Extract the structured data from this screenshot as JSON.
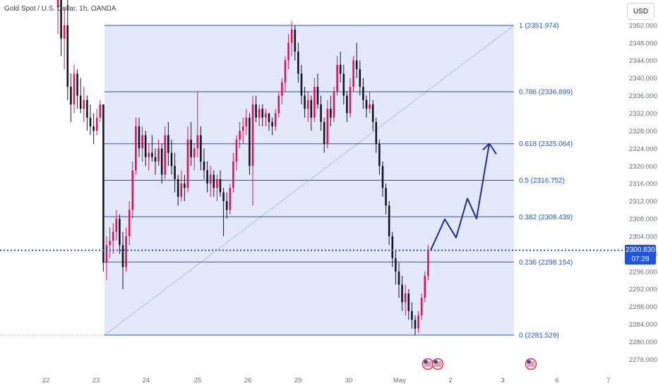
{
  "header": {
    "symbol_title": "Gold Spot / U.S. Dollar, 1h, OANDA"
  },
  "currency_button": "USD",
  "last_price": {
    "value": "2300.830",
    "countdown": "07:28"
  },
  "colors": {
    "up_candle": "#d8175b",
    "down_candle": "#131722",
    "fib_line": "#2a55c9",
    "fib_fill": "#e4e8fb",
    "projection": "#1a2f8f",
    "price_line": "#1e53e5"
  },
  "chart_data": {
    "type": "candlestick",
    "y_axis": {
      "range": [
        2274,
        2354
      ],
      "ticks": [
        "2352.000",
        "2348.000",
        "2344.000",
        "2340.000",
        "2336.000",
        "2332.000",
        "2328.000",
        "2324.000",
        "2320.000",
        "2316.000",
        "2312.000",
        "2308.000",
        "2304.000",
        "2300.000",
        "2296.000",
        "2292.000",
        "2288.000",
        "2284.000",
        "2280.000",
        "2276.000"
      ]
    },
    "x_axis": {
      "ticks": [
        "22",
        "23",
        "24",
        "25",
        "26",
        "29",
        "30",
        "May",
        "2",
        "3",
        "6",
        "7"
      ]
    },
    "fibonacci": {
      "high": 2351.974,
      "low": 2281.529,
      "levels": [
        {
          "ratio": "1",
          "price": "2351.974"
        },
        {
          "ratio": "0.786",
          "price": "2336.899"
        },
        {
          "ratio": "0.618",
          "price": "2325.064"
        },
        {
          "ratio": "0.5",
          "price": "2316.752"
        },
        {
          "ratio": "0.382",
          "price": "2308.439"
        },
        {
          "ratio": "0.236",
          "price": "2298.154"
        },
        {
          "ratio": "0",
          "price": "2281.529"
        }
      ]
    },
    "last_price_level": 2300.83,
    "projection_path": [
      2300.83,
      2307.9,
      2303.7,
      2312.6,
      2308.0,
      2325.1,
      2322.7
    ],
    "candles": [
      [
        2356.0,
        2366.0,
        2350.0,
        2360.0
      ],
      [
        2360.0,
        2364.0,
        2345.0,
        2349.0
      ],
      [
        2349.0,
        2356.0,
        2342.0,
        2352.0
      ],
      [
        2352.0,
        2358.0,
        2335.0,
        2338.0
      ],
      [
        2338.0,
        2341.0,
        2330.0,
        2334.0
      ],
      [
        2334.0,
        2343.0,
        2332.0,
        2341.0
      ],
      [
        2341.0,
        2342.0,
        2333.0,
        2336.0
      ],
      [
        2336.0,
        2340.0,
        2332.0,
        2333.0
      ],
      [
        2333.0,
        2338.0,
        2330.0,
        2335.0
      ],
      [
        2335.0,
        2336.0,
        2328.0,
        2331.0
      ],
      [
        2331.0,
        2334.0,
        2327.0,
        2329.0
      ],
      [
        2329.0,
        2332.0,
        2325.0,
        2328.0
      ],
      [
        2328.0,
        2333.0,
        2327.0,
        2331.0
      ],
      [
        2331.0,
        2335.0,
        2330.0,
        2334.0
      ],
      [
        2334.0,
        2334.0,
        2296.0,
        2298.0
      ],
      [
        2298.0,
        2304.0,
        2294.0,
        2302.0
      ],
      [
        2302.0,
        2306.0,
        2299.0,
        2303.0
      ],
      [
        2303.0,
        2307.0,
        2300.0,
        2305.0
      ],
      [
        2305.0,
        2310.0,
        2303.0,
        2308.0
      ],
      [
        2308.0,
        2309.0,
        2300.0,
        2302.0
      ],
      [
        2302.0,
        2305.0,
        2292.0,
        2297.0
      ],
      [
        2297.0,
        2306.0,
        2296.0,
        2304.0
      ],
      [
        2304.0,
        2312.0,
        2302.0,
        2310.0
      ],
      [
        2310.0,
        2321.0,
        2308.0,
        2319.0
      ],
      [
        2319.0,
        2331.0,
        2318.0,
        2329.0
      ],
      [
        2329.0,
        2331.0,
        2322.0,
        2324.0
      ],
      [
        2324.0,
        2329.0,
        2321.0,
        2327.0
      ],
      [
        2327.0,
        2328.0,
        2320.0,
        2322.0
      ],
      [
        2322.0,
        2325.0,
        2319.0,
        2323.0
      ],
      [
        2323.0,
        2327.0,
        2321.0,
        2322.0
      ],
      [
        2322.0,
        2324.0,
        2318.0,
        2321.0
      ],
      [
        2321.0,
        2326.0,
        2320.0,
        2324.0
      ],
      [
        2324.0,
        2325.0,
        2316.0,
        2318.0
      ],
      [
        2318.0,
        2329.0,
        2317.0,
        2327.0
      ],
      [
        2327.0,
        2330.0,
        2320.0,
        2323.0
      ],
      [
        2323.0,
        2326.0,
        2318.0,
        2320.0
      ],
      [
        2320.0,
        2323.0,
        2314.0,
        2317.0
      ],
      [
        2317.0,
        2318.0,
        2311.0,
        2313.0
      ],
      [
        2313.0,
        2319.0,
        2312.0,
        2316.0
      ],
      [
        2316.0,
        2318.0,
        2312.0,
        2315.0
      ],
      [
        2315.0,
        2329.0,
        2314.0,
        2326.0
      ],
      [
        2326.0,
        2330.0,
        2320.0,
        2322.0
      ],
      [
        2322.0,
        2325.0,
        2319.0,
        2324.0
      ],
      [
        2324.0,
        2337.0,
        2322.0,
        2327.0
      ],
      [
        2327.0,
        2329.0,
        2319.0,
        2321.0
      ],
      [
        2321.0,
        2324.0,
        2317.0,
        2319.0
      ],
      [
        2319.0,
        2321.0,
        2314.0,
        2316.0
      ],
      [
        2316.0,
        2320.0,
        2313.0,
        2318.0
      ],
      [
        2318.0,
        2319.0,
        2313.0,
        2315.0
      ],
      [
        2315.0,
        2318.0,
        2312.0,
        2317.0
      ],
      [
        2317.0,
        2319.0,
        2313.0,
        2314.0
      ],
      [
        2314.0,
        2315.0,
        2304.0,
        2312.0
      ],
      [
        2312.0,
        2314.0,
        2308.0,
        2310.0
      ],
      [
        2310.0,
        2316.0,
        2309.0,
        2315.0
      ],
      [
        2315.0,
        2323.0,
        2314.0,
        2321.0
      ],
      [
        2321.0,
        2327.0,
        2319.0,
        2326.0
      ],
      [
        2326.0,
        2330.0,
        2324.0,
        2328.0
      ],
      [
        2328.0,
        2331.0,
        2325.0,
        2329.0
      ],
      [
        2329.0,
        2333.0,
        2327.0,
        2331.0
      ],
      [
        2331.0,
        2332.0,
        2318.0,
        2320.0
      ],
      [
        2320.0,
        2336.0,
        2311.0,
        2334.0
      ],
      [
        2334.0,
        2336.0,
        2330.0,
        2331.0
      ],
      [
        2331.0,
        2334.0,
        2329.0,
        2333.0
      ],
      [
        2333.0,
        2334.0,
        2329.0,
        2331.0
      ],
      [
        2331.0,
        2333.0,
        2329.0,
        2332.0
      ],
      [
        2332.0,
        2332.0,
        2328.0,
        2330.0
      ],
      [
        2330.0,
        2331.0,
        2327.0,
        2329.0
      ],
      [
        2329.0,
        2333.0,
        2328.0,
        2332.0
      ],
      [
        2332.0,
        2337.0,
        2331.0,
        2336.0
      ],
      [
        2336.0,
        2340.0,
        2334.0,
        2339.0
      ],
      [
        2339.0,
        2345.0,
        2337.0,
        2344.0
      ],
      [
        2344.0,
        2350.0,
        2342.0,
        2348.0
      ],
      [
        2348.0,
        2353.0,
        2345.0,
        2351.0
      ],
      [
        2351.0,
        2352.0,
        2344.0,
        2346.0
      ],
      [
        2346.0,
        2348.0,
        2339.0,
        2341.0
      ],
      [
        2341.0,
        2343.0,
        2334.0,
        2336.0
      ],
      [
        2336.0,
        2338.0,
        2331.0,
        2333.0
      ],
      [
        2333.0,
        2337.0,
        2330.0,
        2335.0
      ],
      [
        2335.0,
        2336.0,
        2328.0,
        2331.0
      ],
      [
        2331.0,
        2340.0,
        2330.0,
        2338.0
      ],
      [
        2338.0,
        2341.0,
        2333.0,
        2334.0
      ],
      [
        2334.0,
        2336.0,
        2328.0,
        2330.0
      ],
      [
        2330.0,
        2331.0,
        2323.0,
        2325.0
      ],
      [
        2325.0,
        2335.0,
        2324.0,
        2333.0
      ],
      [
        2333.0,
        2336.0,
        2329.0,
        2331.0
      ],
      [
        2331.0,
        2338.0,
        2330.0,
        2337.0
      ],
      [
        2337.0,
        2345.0,
        2336.0,
        2343.0
      ],
      [
        2343.0,
        2346.0,
        2339.0,
        2341.0
      ],
      [
        2341.0,
        2343.0,
        2334.0,
        2336.0
      ],
      [
        2336.0,
        2337.0,
        2330.0,
        2332.0
      ],
      [
        2332.0,
        2340.0,
        2331.0,
        2338.0
      ],
      [
        2338.0,
        2345.0,
        2337.0,
        2344.0
      ],
      [
        2344.0,
        2348.0,
        2340.0,
        2342.0
      ],
      [
        2342.0,
        2344.0,
        2336.0,
        2338.0
      ],
      [
        2338.0,
        2340.0,
        2333.0,
        2335.0
      ],
      [
        2335.0,
        2336.0,
        2331.0,
        2333.0
      ],
      [
        2333.0,
        2337.0,
        2332.0,
        2334.0
      ],
      [
        2334.0,
        2335.0,
        2328.0,
        2330.0
      ],
      [
        2330.0,
        2331.0,
        2323.0,
        2325.0
      ],
      [
        2325.0,
        2326.0,
        2318.0,
        2320.0
      ],
      [
        2320.0,
        2321.0,
        2313.0,
        2315.0
      ],
      [
        2315.0,
        2316.0,
        2309.0,
        2311.0
      ],
      [
        2311.0,
        2312.0,
        2302.0,
        2304.0
      ],
      [
        2304.0,
        2305.0,
        2297.0,
        2299.0
      ],
      [
        2299.0,
        2301.0,
        2293.0,
        2296.0
      ],
      [
        2296.0,
        2298.0,
        2290.0,
        2293.0
      ],
      [
        2293.0,
        2295.0,
        2287.0,
        2289.0
      ],
      [
        2289.0,
        2293.0,
        2286.0,
        2291.0
      ],
      [
        2291.0,
        2292.0,
        2285.0,
        2287.0
      ],
      [
        2287.0,
        2289.0,
        2283.0,
        2285.0
      ],
      [
        2285.0,
        2286.0,
        2281.5,
        2283.0
      ],
      [
        2283.0,
        2287.0,
        2282.0,
        2286.0
      ],
      [
        2286.0,
        2291.0,
        2285.0,
        2290.0
      ],
      [
        2290.0,
        2296.0,
        2289.0,
        2295.0
      ],
      [
        2295.0,
        2302.0,
        2294.0,
        2301.0
      ]
    ]
  }
}
